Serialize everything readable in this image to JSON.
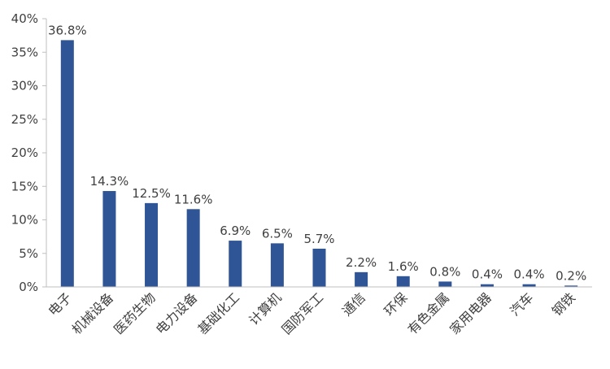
{
  "chart_data": {
    "type": "bar",
    "title": "",
    "xlabel": "",
    "ylabel": "",
    "categories": [
      "电子",
      "机械设备",
      "医药生物",
      "电力设备",
      "基础化工",
      "计算机",
      "国防军工",
      "通信",
      "环保",
      "有色金属",
      "家用电器",
      "汽车",
      "钢铁"
    ],
    "values": [
      36.8,
      14.3,
      12.5,
      11.6,
      6.9,
      6.5,
      5.7,
      2.2,
      1.6,
      0.8,
      0.4,
      0.4,
      0.2
    ],
    "data_labels": [
      "36.8%",
      "14.3%",
      "12.5%",
      "11.6%",
      "6.9%",
      "6.5%",
      "5.7%",
      "2.2%",
      "1.6%",
      "0.8%",
      "0.4%",
      "0.4%",
      "0.2%"
    ],
    "ylim": [
      0,
      40
    ],
    "y_ticks": [
      0,
      5,
      10,
      15,
      20,
      25,
      30,
      35,
      40
    ],
    "y_tick_labels": [
      "0%",
      "5%",
      "10%",
      "15%",
      "20%",
      "25%",
      "30%",
      "35%",
      "40%"
    ],
    "grid": false,
    "legend": "none",
    "bar_color": "#2F5597",
    "axis_color": "#BFBFBF",
    "text_color": "#404040"
  }
}
